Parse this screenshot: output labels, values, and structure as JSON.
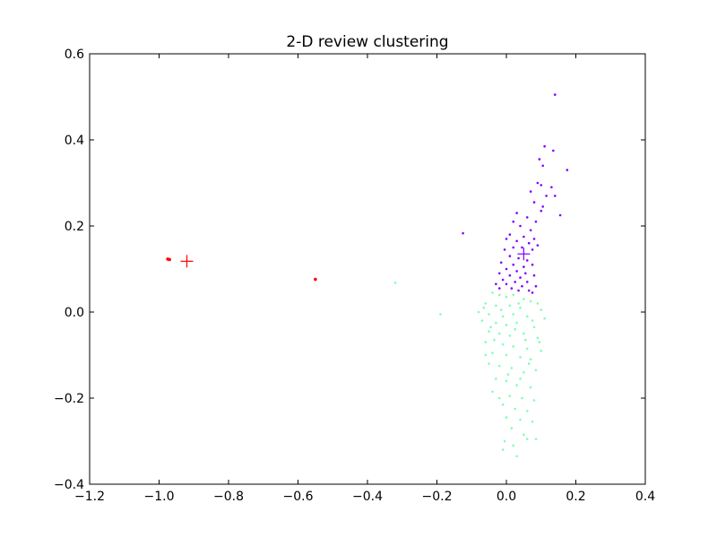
{
  "chart_data": {
    "type": "scatter",
    "title": "2-D review clustering",
    "xlabel": "",
    "ylabel": "",
    "xlim": [
      -1.2,
      0.4
    ],
    "ylim": [
      -0.4,
      0.6
    ],
    "x_ticks": [
      -1.2,
      -1.0,
      -0.8,
      -0.6,
      -0.4,
      -0.2,
      0.0,
      0.2,
      0.4
    ],
    "x_tick_labels": [
      "−1.2",
      "−1.0",
      "−0.8",
      "−0.6",
      "−0.4",
      "−0.2",
      "0.0",
      "0.2",
      "0.4"
    ],
    "y_ticks": [
      -0.4,
      -0.2,
      0.0,
      0.2,
      0.4,
      0.6
    ],
    "y_tick_labels": [
      "−0.4",
      "−0.2",
      "0.0",
      "0.2",
      "0.4",
      "0.6"
    ],
    "grid": false,
    "legend": "none",
    "series": [
      {
        "color": "#8000ff",
        "centroid": [
          0.05,
          0.135
        ],
        "points": [
          [
            0.14,
            0.505
          ],
          [
            0.11,
            0.385
          ],
          [
            0.135,
            0.375
          ],
          [
            0.175,
            0.33
          ],
          [
            0.095,
            0.355
          ],
          [
            0.105,
            0.34
          ],
          [
            0.13,
            0.29
          ],
          [
            0.09,
            0.3
          ],
          [
            0.1,
            0.295
          ],
          [
            0.14,
            0.27
          ],
          [
            0.07,
            0.28
          ],
          [
            0.115,
            0.27
          ],
          [
            0.08,
            0.255
          ],
          [
            0.105,
            0.245
          ],
          [
            0.155,
            0.225
          ],
          [
            0.1,
            0.235
          ],
          [
            0.03,
            0.23
          ],
          [
            0.06,
            0.22
          ],
          [
            0.02,
            0.21
          ],
          [
            0.085,
            0.21
          ],
          [
            0.04,
            0.2
          ],
          [
            0.07,
            0.19
          ],
          [
            -0.125,
            0.183
          ],
          [
            0.01,
            0.18
          ],
          [
            0.05,
            0.175
          ],
          [
            0.08,
            0.17
          ],
          [
            0.0,
            0.17
          ],
          [
            0.03,
            0.165
          ],
          [
            0.065,
            0.16
          ],
          [
            0.09,
            0.155
          ],
          [
            0.02,
            0.15
          ],
          [
            -0.005,
            0.145
          ],
          [
            0.045,
            0.15
          ],
          [
            0.075,
            0.145
          ],
          [
            0.01,
            0.13
          ],
          [
            0.035,
            0.125
          ],
          [
            0.06,
            0.12
          ],
          [
            -0.015,
            0.115
          ],
          [
            0.02,
            0.11
          ],
          [
            0.05,
            0.105
          ],
          [
            0.075,
            0.11
          ],
          [
            0.0,
            0.1
          ],
          [
            0.03,
            0.095
          ],
          [
            -0.02,
            0.09
          ],
          [
            0.055,
            0.09
          ],
          [
            0.08,
            0.085
          ],
          [
            0.01,
            0.085
          ],
          [
            0.04,
            0.08
          ],
          [
            -0.01,
            0.075
          ],
          [
            0.025,
            0.07
          ],
          [
            0.06,
            0.07
          ],
          [
            -0.03,
            0.065
          ],
          [
            0.0,
            0.065
          ],
          [
            0.045,
            0.06
          ],
          [
            0.085,
            0.06
          ],
          [
            0.015,
            0.055
          ],
          [
            -0.02,
            0.055
          ],
          [
            0.035,
            0.05
          ],
          [
            0.065,
            0.05
          ],
          [
            0.075,
            0.045
          ]
        ]
      },
      {
        "color": "#80ffb4",
        "centroid": null,
        "points": [
          [
            -0.32,
            0.068
          ],
          [
            -0.19,
            -0.005
          ],
          [
            -0.04,
            0.045
          ],
          [
            -0.02,
            0.04
          ],
          [
            0.0,
            0.035
          ],
          [
            0.02,
            0.04
          ],
          [
            0.05,
            0.03
          ],
          [
            0.07,
            0.025
          ],
          [
            0.09,
            0.02
          ],
          [
            -0.06,
            0.02
          ],
          [
            -0.03,
            0.015
          ],
          [
            0.01,
            0.015
          ],
          [
            0.04,
            0.01
          ],
          [
            0.1,
            0.005
          ],
          [
            -0.08,
            0.0
          ],
          [
            -0.05,
            -0.005
          ],
          [
            -0.01,
            -0.01
          ],
          [
            0.02,
            -0.005
          ],
          [
            0.06,
            -0.01
          ],
          [
            0.11,
            -0.015
          ],
          [
            -0.07,
            -0.02
          ],
          [
            -0.03,
            -0.025
          ],
          [
            0.0,
            -0.03
          ],
          [
            0.03,
            -0.025
          ],
          [
            0.08,
            -0.035
          ],
          [
            -0.05,
            -0.045
          ],
          [
            -0.02,
            -0.05
          ],
          [
            0.01,
            -0.055
          ],
          [
            0.05,
            -0.05
          ],
          [
            0.09,
            -0.06
          ],
          [
            -0.06,
            -0.07
          ],
          [
            -0.01,
            -0.075
          ],
          [
            0.02,
            -0.08
          ],
          [
            0.06,
            -0.085
          ],
          [
            0.1,
            -0.09
          ],
          [
            -0.04,
            -0.095
          ],
          [
            0.0,
            -0.1
          ],
          [
            0.04,
            -0.105
          ],
          [
            0.07,
            -0.11
          ],
          [
            -0.05,
            -0.12
          ],
          [
            -0.02,
            -0.125
          ],
          [
            0.015,
            -0.13
          ],
          [
            0.05,
            -0.14
          ],
          [
            0.085,
            -0.135
          ],
          [
            -0.03,
            -0.155
          ],
          [
            0.0,
            -0.16
          ],
          [
            0.03,
            -0.17
          ],
          [
            0.07,
            -0.175
          ],
          [
            -0.04,
            -0.185
          ],
          [
            0.01,
            -0.195
          ],
          [
            0.045,
            -0.2
          ],
          [
            0.08,
            -0.205
          ],
          [
            -0.01,
            -0.215
          ],
          [
            0.025,
            -0.225
          ],
          [
            0.06,
            -0.23
          ],
          [
            0.0,
            -0.245
          ],
          [
            0.04,
            -0.25
          ],
          [
            0.075,
            -0.255
          ],
          [
            0.015,
            -0.27
          ],
          [
            0.05,
            -0.285
          ],
          [
            -0.005,
            -0.3
          ],
          [
            0.085,
            -0.295
          ],
          [
            0.02,
            -0.31
          ],
          [
            -0.01,
            -0.32
          ],
          [
            0.03,
            -0.335
          ],
          [
            0.06,
            -0.295
          ],
          [
            -0.065,
            0.01
          ],
          [
            -0.045,
            -0.035
          ],
          [
            0.035,
            0.02
          ],
          [
            0.075,
            -0.02
          ],
          [
            -0.015,
            0.005
          ],
          [
            0.055,
            -0.065
          ],
          [
            -0.035,
            -0.065
          ],
          [
            0.025,
            -0.04
          ],
          [
            0.095,
            -0.07
          ],
          [
            0.065,
            -0.12
          ],
          [
            -0.06,
            -0.1
          ],
          [
            0.005,
            -0.145
          ],
          [
            0.04,
            -0.155
          ],
          [
            -0.02,
            -0.2
          ]
        ]
      },
      {
        "color": "#ff0000",
        "centroid": [
          -0.92,
          0.118
        ],
        "points": [
          [
            -0.975,
            0.123
          ],
          [
            -0.97,
            0.122
          ],
          [
            -0.55,
            0.076
          ]
        ]
      }
    ]
  }
}
